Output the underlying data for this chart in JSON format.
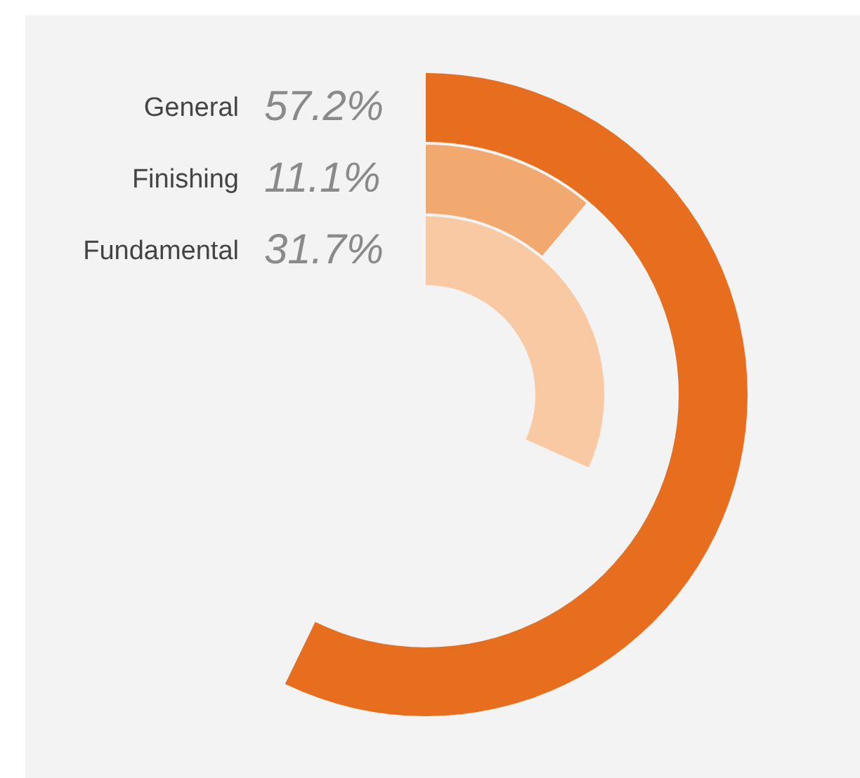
{
  "chart_data": {
    "type": "other",
    "categories": [
      "General",
      "Finishing",
      "Fundamental"
    ],
    "values": [
      57.2,
      11.1,
      31.7
    ],
    "colors": [
      "#e86e1f",
      "#f2a970",
      "#f8c9a2"
    ],
    "value_labels": [
      "57.2%",
      "11.1%",
      "31.7%"
    ]
  }
}
